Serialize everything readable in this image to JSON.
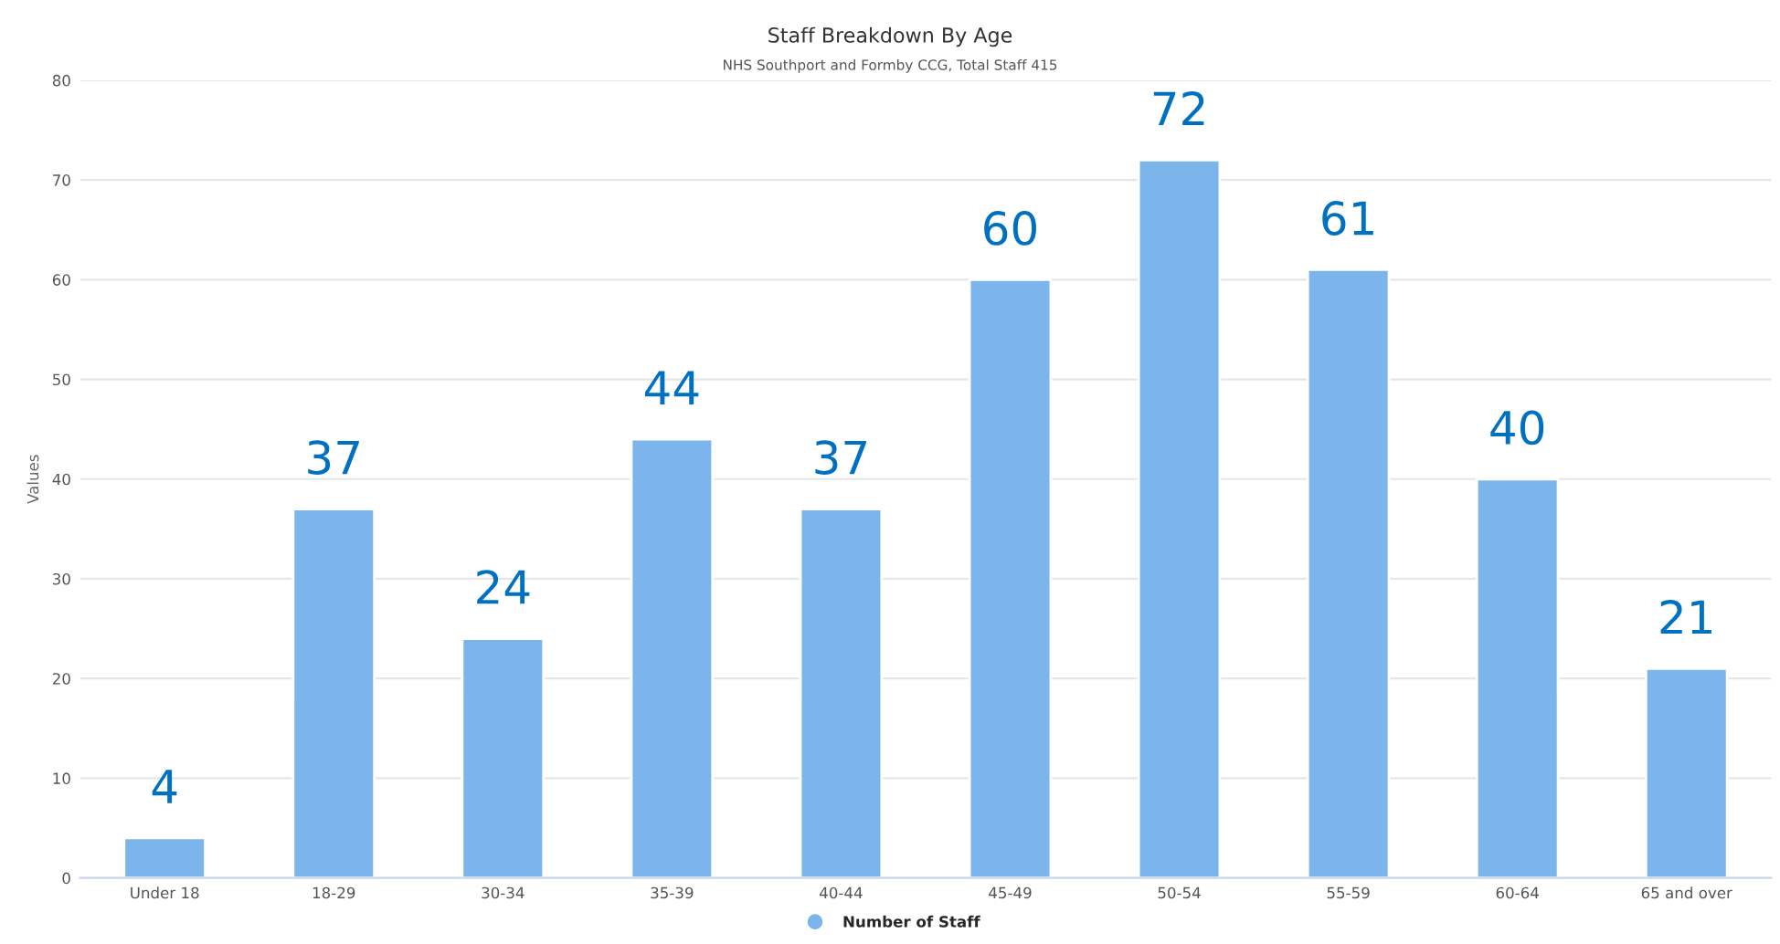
{
  "chart_data": {
    "type": "bar",
    "title": "Staff Breakdown By Age",
    "subtitle": "NHS Southport and Formby CCG, Total Staff 415",
    "ylabel": "Values",
    "categories": [
      "Under 18",
      "18-29",
      "30-34",
      "35-39",
      "40-44",
      "45-49",
      "50-54",
      "55-59",
      "60-64",
      "65 and over"
    ],
    "series": [
      {
        "name": "Number of Staff",
        "color": "#7cb5ec",
        "values": [
          4,
          37,
          24,
          44,
          37,
          60,
          72,
          61,
          40,
          21
        ]
      }
    ],
    "ylim": [
      0,
      80
    ],
    "yticks": [
      0,
      10,
      20,
      30,
      40,
      50,
      60,
      70,
      80
    ],
    "grid": "y",
    "legend": "bottom",
    "data_labels": true
  }
}
